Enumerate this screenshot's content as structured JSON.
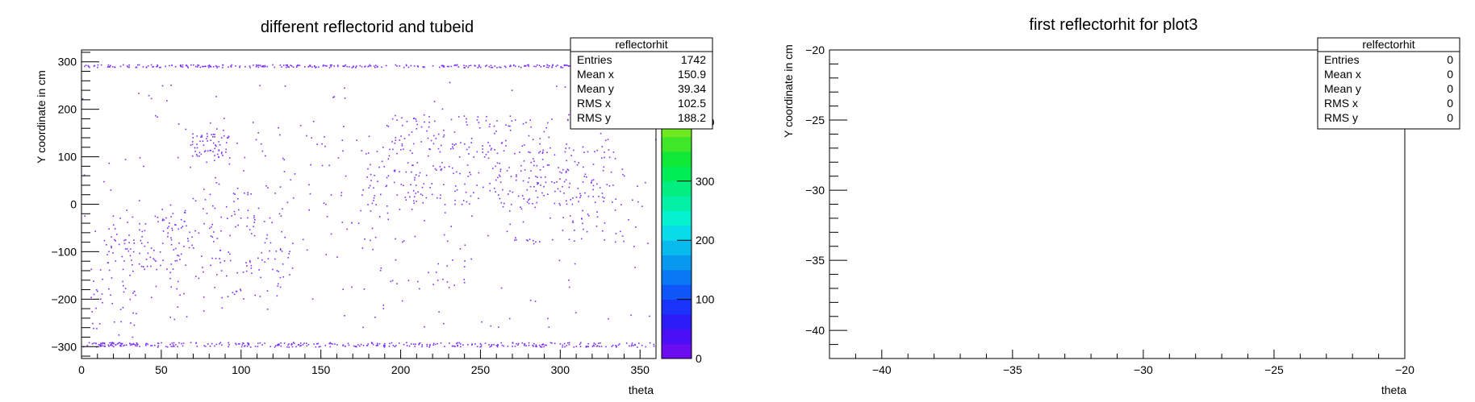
{
  "chart_data": [
    {
      "type": "heatmap",
      "title": "different reflectorid and tubeid",
      "xlabel": "theta",
      "ylabel": "Y coordinate in cm",
      "xlim": [
        0,
        360
      ],
      "ylim": [
        -325,
        325
      ],
      "x_ticks": [
        0,
        50,
        100,
        150,
        200,
        250,
        300,
        350
      ],
      "y_ticks": [
        -300,
        -200,
        -100,
        0,
        100,
        200,
        300
      ],
      "colorbar": {
        "zlim": [
          0,
          500
        ],
        "ticks": [
          0,
          100,
          200,
          300,
          400
        ],
        "colors": [
          "#6a0df0",
          "#4b0ff5",
          "#2d1cf8",
          "#1a33fa",
          "#0f55f8",
          "#0a77f4",
          "#0898f0",
          "#08baee",
          "#08dcea",
          "#05f2d0",
          "#04f0a8",
          "#03ee80",
          "#02ec58",
          "#10e838",
          "#40e628",
          "#70ea20",
          "#a0ee18",
          "#cff414",
          "#f6f816",
          "#f8ec1a"
        ]
      },
      "marker_color": "#7b2ff7",
      "stats": {
        "title": "reflectorhit",
        "rows": [
          {
            "label": "Entries",
            "value": "1742"
          },
          {
            "label": "Mean x",
            "value": "150.9"
          },
          {
            "label": "Mean y",
            "value": "39.34"
          },
          {
            "label": "RMS x",
            "value": "102.5"
          },
          {
            "label": "RMS y",
            "value": "188.2"
          }
        ]
      }
    },
    {
      "type": "heatmap",
      "title": "first reflectorhit for plot3",
      "xlabel": "theta",
      "ylabel": "Y coordinate in cm",
      "xlim": [
        -42,
        -20
      ],
      "ylim": [
        -42,
        -20
      ],
      "x_ticks": [
        -40,
        -35,
        -30,
        -25,
        -20
      ],
      "y_ticks": [
        -40,
        -35,
        -30,
        -25,
        -20
      ],
      "stats": {
        "title": "relfectorhit",
        "rows": [
          {
            "label": "Entries",
            "value": "0"
          },
          {
            "label": "Mean x",
            "value": "0"
          },
          {
            "label": "Mean y",
            "value": "0"
          },
          {
            "label": "RMS x",
            "value": "0"
          },
          {
            "label": "RMS y",
            "value": "0"
          }
        ]
      }
    }
  ]
}
